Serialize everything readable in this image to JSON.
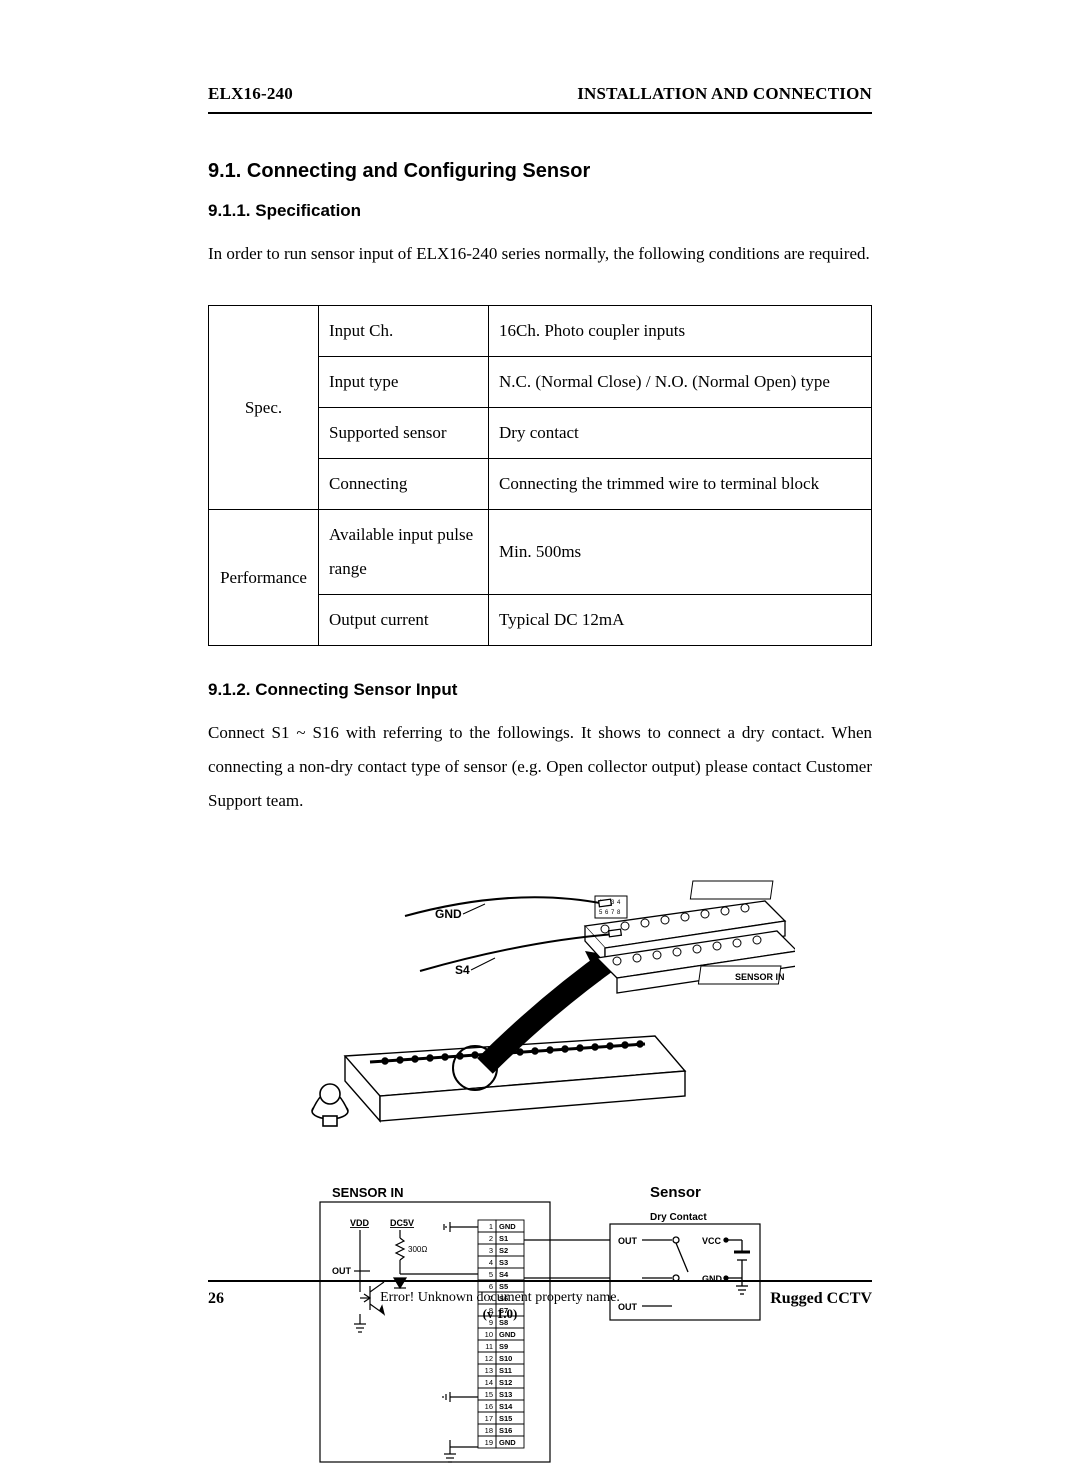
{
  "header": {
    "left": "ELX16-240",
    "right": "INSTALLATION AND CONNECTION"
  },
  "section": {
    "num_title": "9.1.  Connecting and Configuring Sensor",
    "sub1_title": "9.1.1.   Specification",
    "sub1_para": "In order to run sensor input of ELX16-240 series normally, the following conditions are required.",
    "sub2_title": "9.1.2.   Connecting Sensor Input",
    "sub2_para": "Connect S1 ~ S16 with referring to the followings. It shows to connect a dry contact. When connecting a non-dry contact type of sensor (e.g. Open collector output) please contact Customer Support team."
  },
  "table": {
    "cat1": "Spec.",
    "cat2": "Performance",
    "rows": [
      {
        "key": "Input Ch.",
        "val": "16Ch. Photo coupler inputs"
      },
      {
        "key": "Input type",
        "val": "N.C. (Normal Close) / N.O. (Normal Open) type"
      },
      {
        "key": "Supported sensor",
        "val": "Dry contact"
      },
      {
        "key": "Connecting",
        "val": "Connecting the trimmed wire to terminal block"
      },
      {
        "key": "Available input pulse range",
        "val": "Min. 500ms"
      },
      {
        "key": "Output current",
        "val": "Typical DC 12mA"
      }
    ]
  },
  "illustration1": {
    "labels": {
      "gnd": "GND",
      "s4": "S4",
      "sensor_in_strip": "SENSOR IN"
    }
  },
  "schematic": {
    "title_left": "SENSOR IN",
    "title_right": "Sensor",
    "dry_contact": "Dry Contact",
    "vdd": "VDD",
    "dc5v": "DC5V",
    "r_val": "300Ω",
    "out": "OUT",
    "vcc": "VCC",
    "gnd": "GND",
    "pins": [
      "1",
      "2",
      "3",
      "4",
      "5",
      "6",
      "7",
      "8",
      "9",
      "10",
      "11",
      "12",
      "13",
      "14",
      "15",
      "16",
      "17",
      "18",
      "19"
    ],
    "sig": [
      "GND",
      "S1",
      "S2",
      "S3",
      "S4",
      "S5",
      "S6",
      "S7",
      "S8",
      "GND",
      "S9",
      "S10",
      "S11",
      "S12",
      "S13",
      "S14",
      "S15",
      "S16",
      "GND"
    ]
  },
  "footer": {
    "page": "26",
    "center": "Error! Unknown document property name.",
    "version": "(v 1.0)",
    "right": "Rugged CCTV"
  },
  "colors": {
    "text": "#000000",
    "line": "#000000",
    "bg": "#ffffff"
  }
}
